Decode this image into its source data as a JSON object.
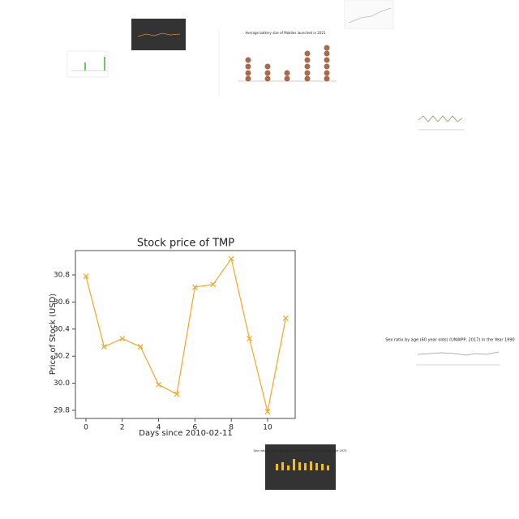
{
  "chart_data": {
    "type": "line",
    "title": "Stock price of TMP",
    "x_label": "Days since 2010-02-11",
    "y_label": "Price of Stock (USD)",
    "x": [
      0,
      1,
      2,
      3,
      4,
      5,
      6,
      7,
      8,
      9,
      10,
      11
    ],
    "series": [
      {
        "name": "TMP",
        "color": "#f5a623",
        "values": [
          30.79,
          30.27,
          30.33,
          30.27,
          29.99,
          29.92,
          30.71,
          30.73,
          30.92,
          30.33,
          29.79,
          30.48
        ]
      }
    ],
    "xlim": [
      -0.58,
      11.52
    ],
    "ylim": [
      29.74,
      30.98
    ],
    "xticks": [
      0,
      2,
      4,
      6,
      8,
      10
    ],
    "yticks": [
      29.8,
      {
        "value": 30,
        "label": "30.0"
      },
      30.2,
      30.4,
      30.6,
      30.8
    ],
    "grid": false,
    "marker": "x"
  },
  "thumbnails": [
    {
      "title": "Average battery size of Mobiles launched in 2021"
    },
    {
      "title": "Sex ratio by age (60 year olds) (UNWPP, 2017) in the Year 1990"
    },
    {
      "title": "Sex ratio by age (60 year olds) (UNWPP, 2017) in the year 1975"
    }
  ]
}
